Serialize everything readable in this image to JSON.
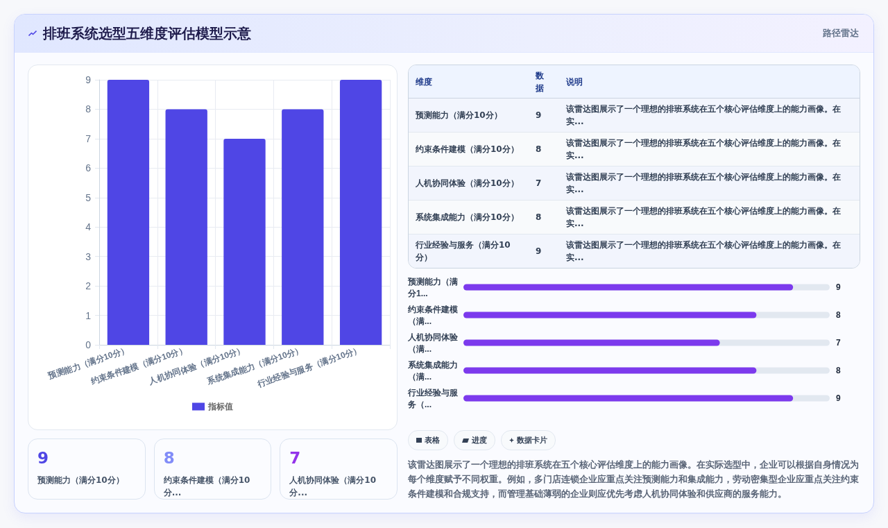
{
  "chart_data": [
    {
      "type": "bar",
      "title": "排班系统选型五维度评估模型示意",
      "annotations": [
        "路径雷达"
      ],
      "categories": [
        "预测能力（满分10分）",
        "约束条件建模（满分10分）",
        "人机协同体验（满分10分）",
        "系统集成能力（满分10分）",
        "行业经验与服务（满分10分）"
      ],
      "series": [
        {
          "name": "指标值",
          "color": "#4f46e5",
          "values": [
            9,
            8,
            7,
            8,
            9
          ]
        }
      ],
      "ylim": [
        0,
        9
      ],
      "yticks": [
        0,
        1,
        2,
        3,
        4,
        5,
        6,
        7,
        8,
        9
      ],
      "grid": true,
      "legend": "bottom"
    },
    {
      "type": "other",
      "categories": [
        "预测能力（满分10分）",
        "约束条件建模（满分10分）",
        "人机协同体验（满分10分）",
        "系统集成能力（满分10分）",
        "行业经验与服务（满分10分）"
      ],
      "values": [
        9,
        8,
        7,
        8,
        9
      ],
      "data_labels": true,
      "annotations": [
        "维度",
        "数据",
        "说明",
        "该雷达图展示了一个理想的排班系统在五个核心评估维度上的能力画像。在实...",
        "该雷达图展示了一个理想的排班系统在五个核心评估维度上的能力画像。在实...",
        "该雷达图展示了一个理想的排班系统在五个核心评估维度上的能力画像。在实...",
        "该雷达图展示了一个理想的排班系统在五个核心评估维度上的能力画像。在实...",
        "该雷达图展示了一个理想的排班系统在五个核心评估维度上的能力画像。在实..."
      ]
    },
    {
      "type": "bar",
      "orientation": "horizontal",
      "categories": [
        "预测能力（满分1...",
        "约束条件建模（满...",
        "人机协同体验（满...",
        "系统集成能力（满...",
        "行业经验与服务（..."
      ],
      "values": [
        9,
        8,
        7,
        8,
        9
      ],
      "color": "#7c3aed",
      "xlim": [
        0,
        10
      ],
      "data_labels": true,
      "tick_labels": "y"
    },
    {
      "type": "other",
      "categories": [
        "预测能力（满分10分）",
        "约束条件建模（满分10分...",
        "人机协同体验（满分10分..."
      ],
      "values": [
        9,
        8,
        7
      ],
      "data_labels": true
    },
    {
      "type": "other",
      "annotations": [
        "表格",
        "进度",
        "数据卡片",
        "该雷达图展示了一个理想的排班系统在五个核心评估维度上的能力画像。在实际选型中，企业可以根据自身情况为每个维度赋予不同权重。例如，多门店连锁企业应重点关注预测能力和集成能力，劳动密集型企业应重点关注约束条件建模和合规支持，而管理基础薄弱的企业则应优先考虑人机协同体验和供应商的服务能力。"
      ]
    }
  ]
}
